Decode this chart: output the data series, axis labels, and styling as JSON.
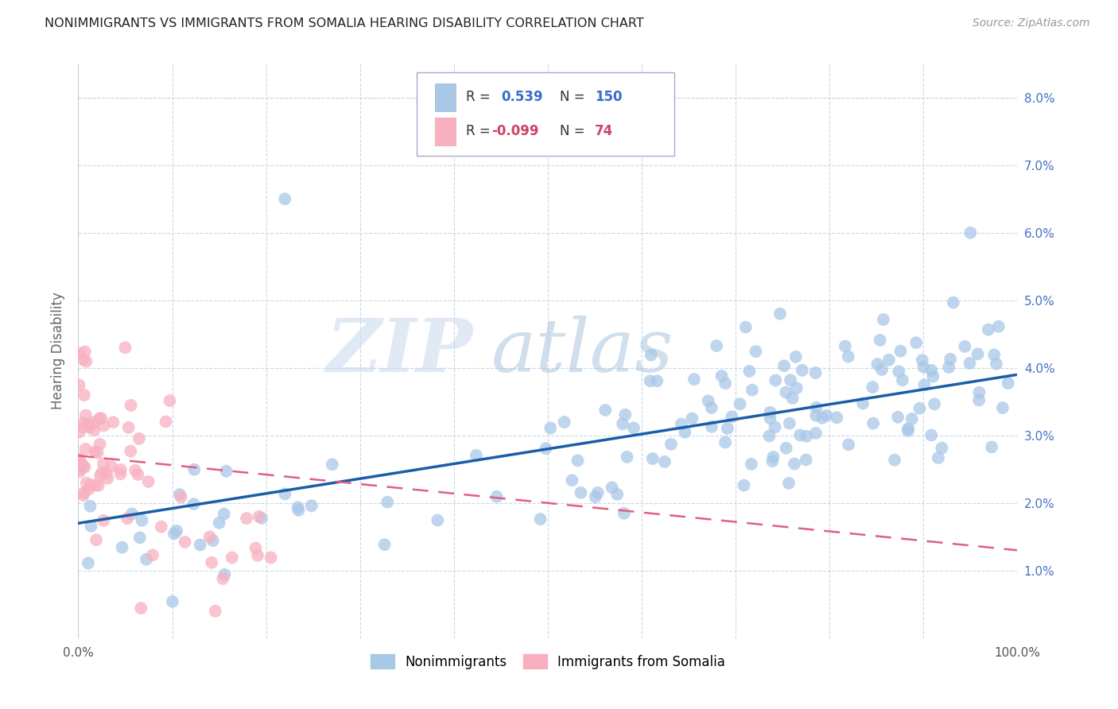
{
  "title": "NONIMMIGRANTS VS IMMIGRANTS FROM SOMALIA HEARING DISABILITY CORRELATION CHART",
  "source": "Source: ZipAtlas.com",
  "ylabel": "Hearing Disability",
  "xlim": [
    0.0,
    1.0
  ],
  "ylim": [
    0.0,
    0.085
  ],
  "blue_R": 0.539,
  "blue_N": 150,
  "pink_R": -0.099,
  "pink_N": 74,
  "blue_color": "#a8c8e8",
  "pink_color": "#f8b0c0",
  "blue_line_color": "#1a5ea8",
  "pink_line_color": "#e06080",
  "watermark_zip": "ZIP",
  "watermark_atlas": "atlas",
  "legend_label_blue": "Nonimmigrants",
  "legend_label_pink": "Immigrants from Somalia",
  "background_color": "#ffffff",
  "grid_color": "#c8d8e8",
  "right_y_color": "#4472c4",
  "blue_line_x0": 0.0,
  "blue_line_y0": 0.017,
  "blue_line_x1": 1.0,
  "blue_line_y1": 0.039,
  "pink_line_x0": 0.0,
  "pink_line_y0": 0.027,
  "pink_line_x1": 1.0,
  "pink_line_y1": 0.013
}
